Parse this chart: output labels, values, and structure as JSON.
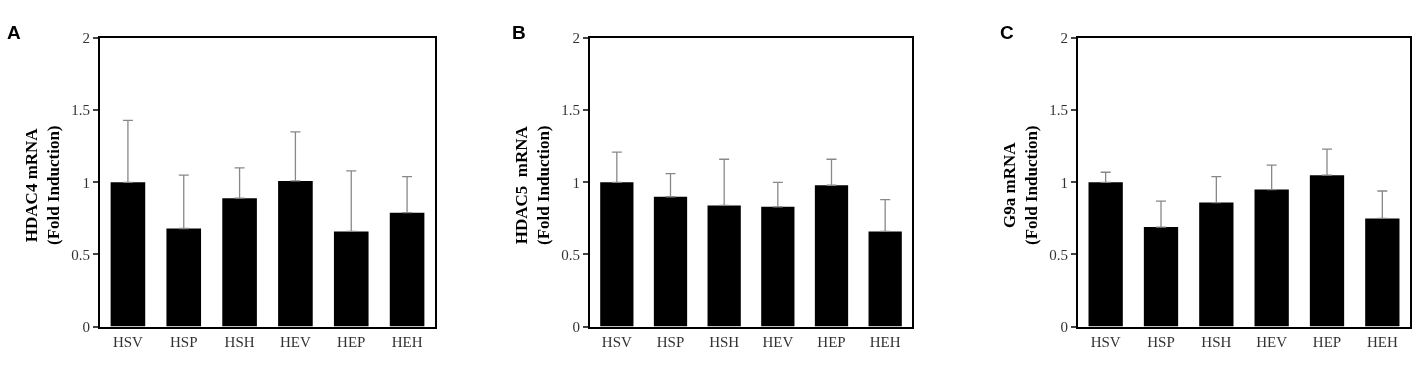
{
  "chart_data": [
    {
      "type": "bar",
      "title": "A",
      "ylabel": "HDAC4 mRNA\n(Fold Induction)",
      "categories": [
        "HSV",
        "HSP",
        "HSH",
        "HEV",
        "HEP",
        "HEH"
      ],
      "color": "#000000",
      "values": [
        1.0,
        0.68,
        0.89,
        1.01,
        0.66,
        0.79
      ],
      "errors": [
        [
          1.0,
          1.43
        ],
        [
          0.68,
          1.05
        ],
        [
          0.89,
          1.1
        ],
        [
          1.01,
          1.35
        ],
        [
          0.66,
          1.08
        ],
        [
          0.79,
          1.04
        ]
      ],
      "ylim": [
        0,
        2
      ],
      "yticks": [
        0,
        0.5,
        1,
        1.5,
        2
      ]
    },
    {
      "type": "bar",
      "title": "B",
      "ylabel": "HDAC5  mRNA\n(Fold Induction)",
      "categories": [
        "HSV",
        "HSP",
        "HSH",
        "HEV",
        "HEP",
        "HEH"
      ],
      "color": "#000000",
      "values": [
        1.0,
        0.9,
        0.84,
        0.83,
        0.98,
        0.66
      ],
      "errors": [
        [
          1.0,
          1.21
        ],
        [
          0.9,
          1.06
        ],
        [
          0.84,
          1.16
        ],
        [
          0.83,
          1.0
        ],
        [
          0.98,
          1.16
        ],
        [
          0.66,
          0.88
        ]
      ],
      "ylim": [
        0,
        2
      ],
      "yticks": [
        0,
        0.5,
        1,
        1.5,
        2
      ]
    },
    {
      "type": "bar",
      "title": "C",
      "ylabel": "G9a mRNA\n(Fold Induction)",
      "categories": [
        "HSV",
        "HSP",
        "HSH",
        "HEV",
        "HEP",
        "HEH"
      ],
      "color": "#000000",
      "values": [
        1.0,
        0.69,
        0.86,
        0.95,
        1.05,
        0.75
      ],
      "errors": [
        [
          1.0,
          1.07
        ],
        [
          0.69,
          0.87
        ],
        [
          0.86,
          1.04
        ],
        [
          0.95,
          1.12
        ],
        [
          1.05,
          1.23
        ],
        [
          0.75,
          0.94
        ]
      ],
      "ylim": [
        0,
        2
      ],
      "yticks": [
        0,
        0.5,
        1,
        1.5,
        2
      ]
    }
  ]
}
